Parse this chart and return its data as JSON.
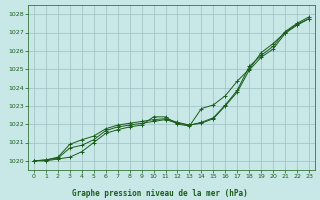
{
  "title": "Graphe pression niveau de la mer (hPa)",
  "background_color": "#c8e8e8",
  "grid_color": "#9dbfbf",
  "line_color": "#1a5c1a",
  "ylim": [
    1019.5,
    1028.5
  ],
  "xlim": [
    -0.5,
    23.5
  ],
  "yticks": [
    1020,
    1021,
    1022,
    1023,
    1024,
    1025,
    1026,
    1027,
    1028
  ],
  "xticks": [
    0,
    1,
    2,
    3,
    4,
    5,
    6,
    7,
    8,
    9,
    10,
    11,
    12,
    13,
    14,
    15,
    16,
    17,
    18,
    19,
    20,
    21,
    22,
    23
  ],
  "series1": [
    1020.0,
    1020.0,
    1020.1,
    1020.2,
    1020.5,
    1021.0,
    1021.5,
    1021.7,
    1021.85,
    1021.95,
    1022.4,
    1022.4,
    1022.0,
    1021.9,
    1022.85,
    1023.05,
    1023.55,
    1024.35,
    1025.0,
    1025.9,
    1026.4,
    1027.0,
    1027.45,
    1027.75
  ],
  "series2": [
    1020.0,
    1020.05,
    1020.2,
    1020.9,
    1021.15,
    1021.35,
    1021.75,
    1021.95,
    1022.05,
    1022.15,
    1022.25,
    1022.3,
    1022.1,
    1021.95,
    1022.1,
    1022.35,
    1023.05,
    1023.85,
    1025.15,
    1025.75,
    1026.25,
    1027.05,
    1027.5,
    1027.85
  ],
  "series3": [
    1020.0,
    1020.05,
    1020.15,
    1020.7,
    1020.85,
    1021.15,
    1021.65,
    1021.85,
    1021.95,
    1022.05,
    1022.15,
    1022.25,
    1022.05,
    1021.95,
    1022.05,
    1022.3,
    1023.0,
    1023.75,
    1024.95,
    1025.65,
    1026.1,
    1026.95,
    1027.4,
    1027.75
  ]
}
